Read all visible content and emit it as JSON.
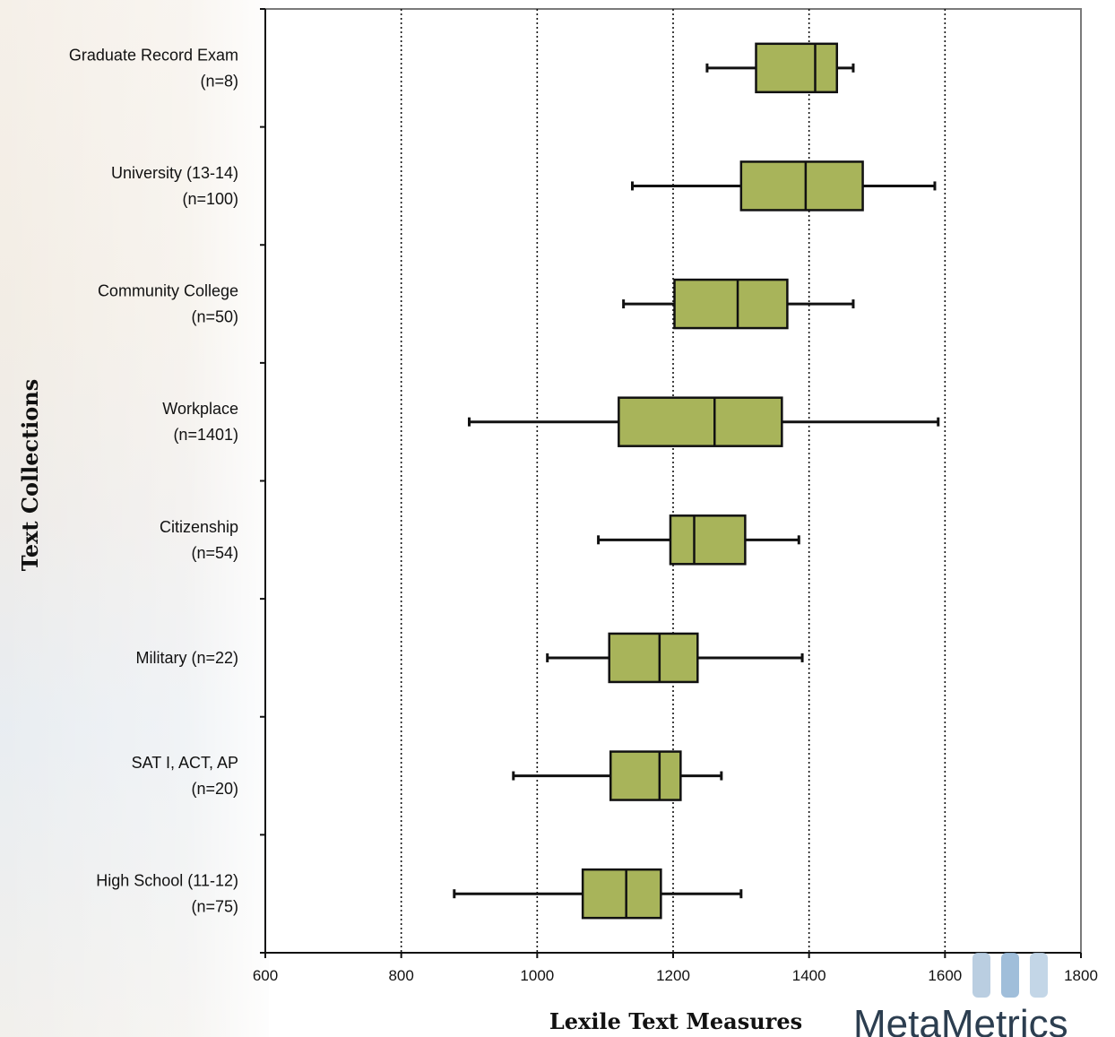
{
  "chart_data": {
    "type": "boxplot",
    "orientation": "horizontal",
    "xlabel": "Lexile Text Measures",
    "ylabel": "Text Collections",
    "xlim": [
      600,
      1800
    ],
    "xticks": [
      600,
      800,
      1000,
      1200,
      1400,
      1600,
      1800
    ],
    "grid": "vertical dotted at 800, 1000, 1200, 1400, 1600",
    "box_color": "#a8b45a",
    "series": [
      {
        "label_lines": [
          "Graduate Record Exam",
          "(n=8)"
        ],
        "min": 1250,
        "q1": 1322,
        "median": 1409,
        "q3": 1441,
        "max": 1465
      },
      {
        "label_lines": [
          "University (13-14)",
          "(n=100)"
        ],
        "min": 1140,
        "q1": 1300,
        "median": 1395,
        "q3": 1479,
        "max": 1585
      },
      {
        "label_lines": [
          "Community College",
          "(n=50)"
        ],
        "min": 1127,
        "q1": 1202,
        "median": 1295,
        "q3": 1368,
        "max": 1465
      },
      {
        "label_lines": [
          "Workplace",
          "(n=1401)"
        ],
        "min": 900,
        "q1": 1120,
        "median": 1261,
        "q3": 1360,
        "max": 1590
      },
      {
        "label_lines": [
          "Citizenship",
          "(n=54)"
        ],
        "min": 1090,
        "q1": 1196,
        "median": 1231,
        "q3": 1306,
        "max": 1385
      },
      {
        "label_lines": [
          "Military (n=22)"
        ],
        "min": 1015,
        "q1": 1106,
        "median": 1180,
        "q3": 1236,
        "max": 1390
      },
      {
        "label_lines": [
          "SAT I, ACT, AP",
          "(n=20)"
        ],
        "min": 965,
        "q1": 1108,
        "median": 1180,
        "q3": 1211,
        "max": 1271
      },
      {
        "label_lines": [
          "High School (11-12)",
          "(n=75)"
        ],
        "min": 878,
        "q1": 1067,
        "median": 1131,
        "q3": 1182,
        "max": 1300
      }
    ]
  },
  "logo": {
    "text": "MetaMetrics"
  }
}
